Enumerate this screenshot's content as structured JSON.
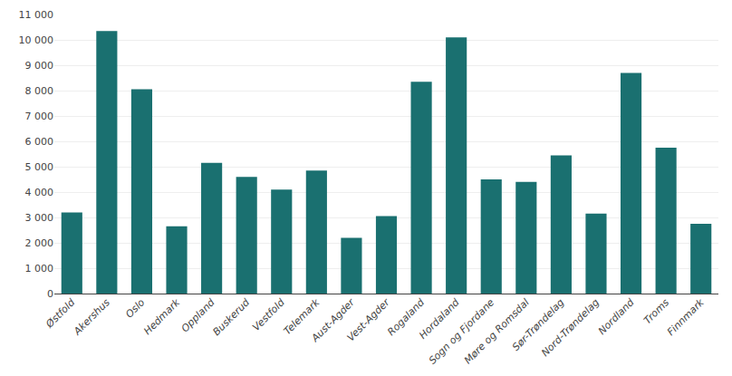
{
  "chart_data": {
    "type": "bar",
    "categories": [
      "Østfold",
      "Akershus",
      "Oslo",
      "Hedmark",
      "Oppland",
      "Buskerud",
      "Vestfold",
      "Telemark",
      "Aust-Agder",
      "Vest-Agder",
      "Rogaland",
      "Hordaland",
      "Sogn og Fjordane",
      "Møre og Romsdal",
      "Sør-Trøndelag",
      "Nord-Trøndelag",
      "Nordland",
      "Troms",
      "Finnmark"
    ],
    "values": [
      3200,
      10350,
      8050,
      2650,
      5150,
      4600,
      4100,
      4850,
      2200,
      3050,
      8350,
      10100,
      4500,
      4400,
      5450,
      3150,
      8700,
      5750,
      2750
    ],
    "color": "#1a7070",
    "ylim": [
      0,
      11000
    ],
    "yticks": [
      0,
      {
        "value": 1000,
        "label": "1 000"
      },
      {
        "value": 2000,
        "label": "2 000"
      },
      {
        "value": 3000,
        "label": "3 000"
      },
      {
        "value": 4000,
        "label": "4 000"
      },
      {
        "value": 5000,
        "label": "5 000"
      },
      {
        "value": 6000,
        "label": "6 000"
      },
      {
        "value": 7000,
        "label": "7 000"
      },
      {
        "value": 8000,
        "label": "8 000"
      },
      {
        "value": 9000,
        "label": "9 000"
      },
      {
        "value": 10000,
        "label": "10 000"
      },
      {
        "value": 11000,
        "label": "11 000"
      }
    ],
    "grid": true
  }
}
